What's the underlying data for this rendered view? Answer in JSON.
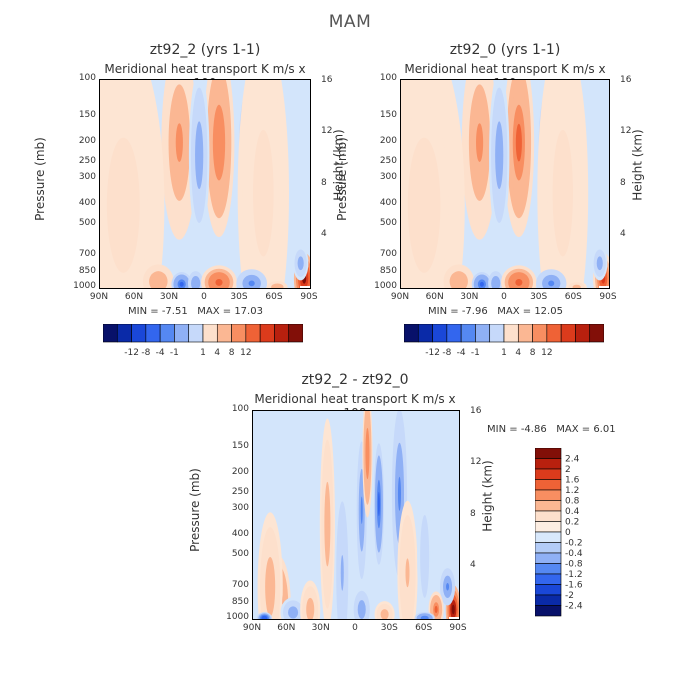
{
  "title": "MAM",
  "chart_data": [
    {
      "type": "heatmap",
      "title": "zt92_2 (yrs 1-1)",
      "subtitle": "Meridional heat transport",
      "units_label": "K m/s x 100",
      "ylabel": "Pressure (mb)",
      "ylabel_right": "Height (km)",
      "x_ticks": [
        "90N",
        "60N",
        "30N",
        "0",
        "30S",
        "60S",
        "90S"
      ],
      "y_ticks": [
        "100",
        "150",
        "200",
        "250",
        "300",
        "400",
        "500",
        "700",
        "850",
        "1000"
      ],
      "y_right_ticks": [
        "16",
        "12",
        "8",
        "4"
      ],
      "min_label": "MIN =",
      "min": "-7.51",
      "max_label": "MAX =",
      "max": "17.03",
      "colorbar_labels": [
        "-12",
        "-8",
        "-4",
        "-1",
        "1",
        "4",
        "8",
        "12"
      ],
      "blobs": [
        {
          "lat": 22,
          "p": 200,
          "v": 5,
          "w": 7,
          "h": 130
        },
        {
          "lat": -12,
          "p": 200,
          "v": 6,
          "w": 6,
          "h": 120
        },
        {
          "lat": 50,
          "p": 180,
          "v": -2,
          "w": 4,
          "h": 70
        },
        {
          "lat": 5,
          "p": 230,
          "v": -3,
          "w": 4,
          "h": 110
        },
        {
          "lat": -38,
          "p": 200,
          "v": -2,
          "w": 5,
          "h": 80
        },
        {
          "lat": 70,
          "p": 400,
          "v": 1,
          "w": 16,
          "h": 400
        },
        {
          "lat": -50,
          "p": 350,
          "v": 1,
          "w": 10,
          "h": 350
        },
        {
          "lat": 40,
          "p": 930,
          "v": 4,
          "w": 6,
          "h": 120
        },
        {
          "lat": 20,
          "p": 960,
          "v": -7,
          "w": 4,
          "h": 100
        },
        {
          "lat": 8,
          "p": 950,
          "v": -4,
          "w": 3,
          "h": 90
        },
        {
          "lat": -12,
          "p": 940,
          "v": 8,
          "w": 7,
          "h": 130
        },
        {
          "lat": -40,
          "p": 950,
          "v": -5,
          "w": 6,
          "h": 110
        },
        {
          "lat": -85,
          "p": 900,
          "v": 14,
          "w": 4,
          "h": 170
        },
        {
          "lat": -82,
          "p": 760,
          "v": -3,
          "w": 3,
          "h": 80
        },
        {
          "lat": -62,
          "p": 990,
          "v": 4,
          "w": 4,
          "h": 50
        }
      ]
    },
    {
      "type": "heatmap",
      "title": "zt92_0 (yrs 1-1)",
      "subtitle": "Meridional heat transport",
      "units_label": "K m/s x 100",
      "ylabel": "Pressure (mb)",
      "ylabel_right": "Height (km)",
      "x_ticks": [
        "90N",
        "60N",
        "30N",
        "0",
        "30S",
        "60S",
        "90S"
      ],
      "y_ticks": [
        "100",
        "150",
        "200",
        "250",
        "300",
        "400",
        "500",
        "700",
        "850",
        "1000"
      ],
      "y_right_ticks": [
        "16",
        "12",
        "8",
        "4"
      ],
      "min_label": "MIN =",
      "min": "-7.96",
      "max_label": "MAX =",
      "max": "12.05",
      "colorbar_labels": [
        "-12",
        "-8",
        "-4",
        "-1",
        "1",
        "4",
        "8",
        "12"
      ],
      "blobs": [
        {
          "lat": 22,
          "p": 200,
          "v": 5,
          "w": 7,
          "h": 130
        },
        {
          "lat": -12,
          "p": 200,
          "v": 7,
          "w": 6,
          "h": 120
        },
        {
          "lat": 50,
          "p": 180,
          "v": -2,
          "w": 4,
          "h": 70
        },
        {
          "lat": 5,
          "p": 230,
          "v": -3,
          "w": 4,
          "h": 110
        },
        {
          "lat": -38,
          "p": 200,
          "v": -2,
          "w": 5,
          "h": 80
        },
        {
          "lat": 70,
          "p": 400,
          "v": 1,
          "w": 16,
          "h": 400
        },
        {
          "lat": -50,
          "p": 350,
          "v": 1,
          "w": 10,
          "h": 350
        },
        {
          "lat": 40,
          "p": 930,
          "v": 4,
          "w": 6,
          "h": 120
        },
        {
          "lat": 20,
          "p": 960,
          "v": -7,
          "w": 4,
          "h": 100
        },
        {
          "lat": 8,
          "p": 950,
          "v": -4,
          "w": 3,
          "h": 90
        },
        {
          "lat": -12,
          "p": 940,
          "v": 8,
          "w": 7,
          "h": 130
        },
        {
          "lat": -40,
          "p": 950,
          "v": -5,
          "w": 6,
          "h": 110
        },
        {
          "lat": -85,
          "p": 900,
          "v": 10,
          "w": 4,
          "h": 170
        },
        {
          "lat": -82,
          "p": 760,
          "v": -3,
          "w": 3,
          "h": 80
        },
        {
          "lat": -62,
          "p": 990,
          "v": 3,
          "w": 4,
          "h": 50
        }
      ]
    },
    {
      "type": "heatmap",
      "title": "zt92_2 - zt92_0",
      "subtitle": "Meridional heat transport",
      "units_label": "K m/s x 100",
      "ylabel": "Pressure (mb)",
      "ylabel_right": "Height (km)",
      "x_ticks": [
        "90N",
        "60N",
        "30N",
        "0",
        "30S",
        "60S",
        "90S"
      ],
      "y_ticks": [
        "100",
        "150",
        "200",
        "250",
        "300",
        "400",
        "500",
        "700",
        "850",
        "1000"
      ],
      "y_right_ticks": [
        "16",
        "12",
        "8",
        "4"
      ],
      "min_label": "MIN =",
      "min": "-4.86",
      "max_label": "MAX =",
      "max": "6.01",
      "colorbar_labels": [
        "2.4",
        "2",
        "1.6",
        "1.2",
        "0.8",
        "0.4",
        "0.2",
        "0",
        "-0.2",
        "-0.4",
        "-0.8",
        "-1.2",
        "-1.6",
        "-2",
        "-2.4"
      ],
      "blobs": [
        {
          "lat": 68,
          "p": 850,
          "v": 1.0,
          "w": 5,
          "h": 300
        },
        {
          "lat": 75,
          "p": 700,
          "v": 0.5,
          "w": 5,
          "h": 300
        },
        {
          "lat": 55,
          "p": 930,
          "v": -0.6,
          "w": 5,
          "h": 100
        },
        {
          "lat": 40,
          "p": 900,
          "v": 0.6,
          "w": 4,
          "h": 200
        },
        {
          "lat": 25,
          "p": 350,
          "v": 0.5,
          "w": 3,
          "h": 200
        },
        {
          "lat": 12,
          "p": 600,
          "v": -0.4,
          "w": 3,
          "h": 300
        },
        {
          "lat": -5,
          "p": 300,
          "v": -0.8,
          "w": 2,
          "h": 120
        },
        {
          "lat": -20,
          "p": 280,
          "v": -1.2,
          "w": 2,
          "h": 100
        },
        {
          "lat": -10,
          "p": 160,
          "v": 1.0,
          "w": 2,
          "h": 60
        },
        {
          "lat": -38,
          "p": 250,
          "v": -0.8,
          "w": 3,
          "h": 120
        },
        {
          "lat": -45,
          "p": 600,
          "v": 0.4,
          "w": 4,
          "h": 250
        },
        {
          "lat": -60,
          "p": 500,
          "v": -0.3,
          "w": 3,
          "h": 200
        },
        {
          "lat": -5,
          "p": 900,
          "v": -0.6,
          "w": 4,
          "h": 150
        },
        {
          "lat": -25,
          "p": 950,
          "v": 0.5,
          "w": 4,
          "h": 100
        },
        {
          "lat": -85,
          "p": 900,
          "v": 2.5,
          "w": 3,
          "h": 160
        },
        {
          "lat": -80,
          "p": 700,
          "v": -0.9,
          "w": 3,
          "h": 80
        },
        {
          "lat": -70,
          "p": 900,
          "v": 1.2,
          "w": 3,
          "h": 100
        },
        {
          "lat": 80,
          "p": 990,
          "v": -1.5,
          "w": 3,
          "h": 30
        },
        {
          "lat": -60,
          "p": 990,
          "v": -1.0,
          "w": 4,
          "h": 40
        }
      ]
    }
  ]
}
